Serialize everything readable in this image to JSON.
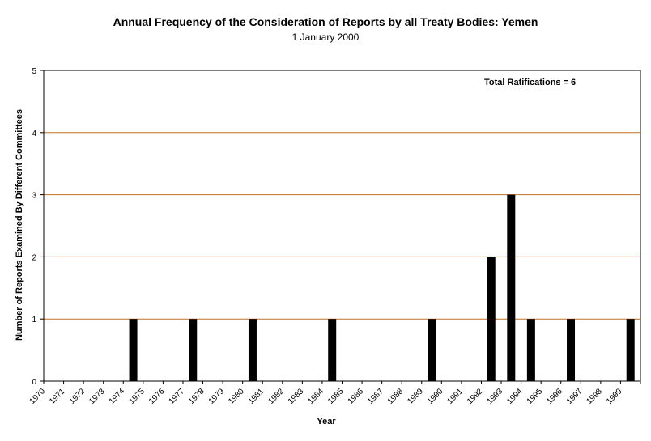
{
  "chart_data": {
    "type": "bar",
    "title": "Annual Frequency of the Consideration of Reports by all Treaty Bodies: Yemen",
    "subtitle": "1 January 2000",
    "xlabel": "Year",
    "ylabel": "Number of Reports Examined By Different Committees",
    "annotation": "Total Ratifications = 6",
    "categories": [
      "1970",
      "1971",
      "1972",
      "1973",
      "1974",
      "1975",
      "1976",
      "1977",
      "1978",
      "1979",
      "1980",
      "1981",
      "1982",
      "1983",
      "1984",
      "1985",
      "1986",
      "1987",
      "1988",
      "1989",
      "1990",
      "1991",
      "1992",
      "1993",
      "1994",
      "1995",
      "1996",
      "1997",
      "1998",
      "1999"
    ],
    "values": [
      0,
      0,
      0,
      0,
      1,
      0,
      0,
      1,
      0,
      0,
      1,
      0,
      0,
      0,
      1,
      0,
      0,
      0,
      0,
      1,
      0,
      0,
      2,
      3,
      1,
      0,
      1,
      0,
      0,
      1
    ],
    "ylim": [
      0,
      5
    ],
    "yticks": [
      0,
      1,
      2,
      3,
      4,
      5
    ],
    "grid": true,
    "colors": {
      "bar": "#000000",
      "grid": "#c07020",
      "axis": "#000000"
    }
  }
}
